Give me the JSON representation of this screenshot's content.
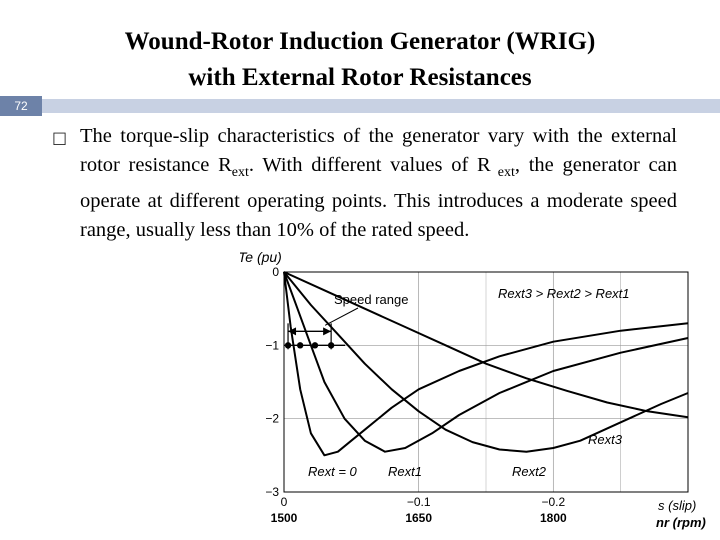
{
  "slide": {
    "title_line1": "Wound-Rotor Induction Generator (WRIG)",
    "title_line2": "with External Rotor Resistances",
    "number": "72",
    "bullet_icon": "square-bullet-icon"
  },
  "body": {
    "seg1": "The torque-slip characteristics of the generator vary with the external rotor resistance R",
    "sub1": "ext",
    "seg2": ". With different values of R",
    "sub2": " ext",
    "seg3": ", the generator can operate at different operating points. This introduces a moderate speed range, usually less than 10% of the rated speed."
  },
  "chart_data": {
    "type": "line",
    "y_axis_label": "Te (pu)",
    "x_axis_label": "s (slip)",
    "x2_axis_label": "nr (rpm)",
    "xlim": [
      0,
      -0.3
    ],
    "ylim": [
      -3,
      0
    ],
    "x_ticks": [
      "0",
      "−0.1",
      "−0.2"
    ],
    "x_tick_values": [
      0,
      -0.1,
      -0.2
    ],
    "x2_ticks": [
      "1500",
      "1650",
      "1800"
    ],
    "y_ticks": [
      "0",
      "−1",
      "−2",
      "−3"
    ],
    "y_tick_values": [
      0,
      -1,
      -2,
      -3
    ],
    "grid": true,
    "annotations": {
      "speed_range": "Speed range",
      "ordering": "Rext3 > Rext2 > Rext1"
    },
    "series": [
      {
        "name": "Rext = 0",
        "x": [
          0,
          -0.005,
          -0.012,
          -0.02,
          -0.03,
          -0.04,
          -0.05,
          -0.06,
          -0.08,
          -0.1,
          -0.13,
          -0.16,
          -0.2,
          -0.25,
          -0.3
        ],
        "y": [
          0,
          -0.75,
          -1.6,
          -2.2,
          -2.5,
          -2.45,
          -2.3,
          -2.15,
          -1.85,
          -1.6,
          -1.35,
          -1.15,
          -0.95,
          -0.8,
          -0.7
        ]
      },
      {
        "name": "Rext1",
        "x": [
          0,
          -0.01,
          -0.02,
          -0.03,
          -0.045,
          -0.06,
          -0.075,
          -0.09,
          -0.11,
          -0.13,
          -0.16,
          -0.2,
          -0.25,
          -0.3
        ],
        "y": [
          0,
          -0.5,
          -1.0,
          -1.5,
          -2.0,
          -2.3,
          -2.45,
          -2.4,
          -2.2,
          -1.95,
          -1.65,
          -1.35,
          -1.1,
          -0.9
        ]
      },
      {
        "name": "Rext2",
        "x": [
          0,
          -0.02,
          -0.04,
          -0.06,
          -0.08,
          -0.1,
          -0.12,
          -0.14,
          -0.16,
          -0.18,
          -0.2,
          -0.22,
          -0.25,
          -0.28,
          -0.3
        ],
        "y": [
          0,
          -0.45,
          -0.85,
          -1.25,
          -1.6,
          -1.9,
          -2.15,
          -2.32,
          -2.42,
          -2.45,
          -2.4,
          -2.3,
          -2.05,
          -1.8,
          -1.65
        ]
      },
      {
        "name": "Rext3",
        "x": [
          0,
          -0.03,
          -0.06,
          -0.09,
          -0.12,
          -0.15,
          -0.18,
          -0.21,
          -0.24,
          -0.27,
          -0.3
        ],
        "y": [
          0,
          -0.25,
          -0.5,
          -0.75,
          -1.0,
          -1.25,
          -1.45,
          -1.62,
          -1.78,
          -1.9,
          -1.98
        ]
      }
    ],
    "operating_points": {
      "y": -1,
      "x": [
        -0.003,
        -0.012,
        -0.023,
        -0.035
      ]
    }
  }
}
